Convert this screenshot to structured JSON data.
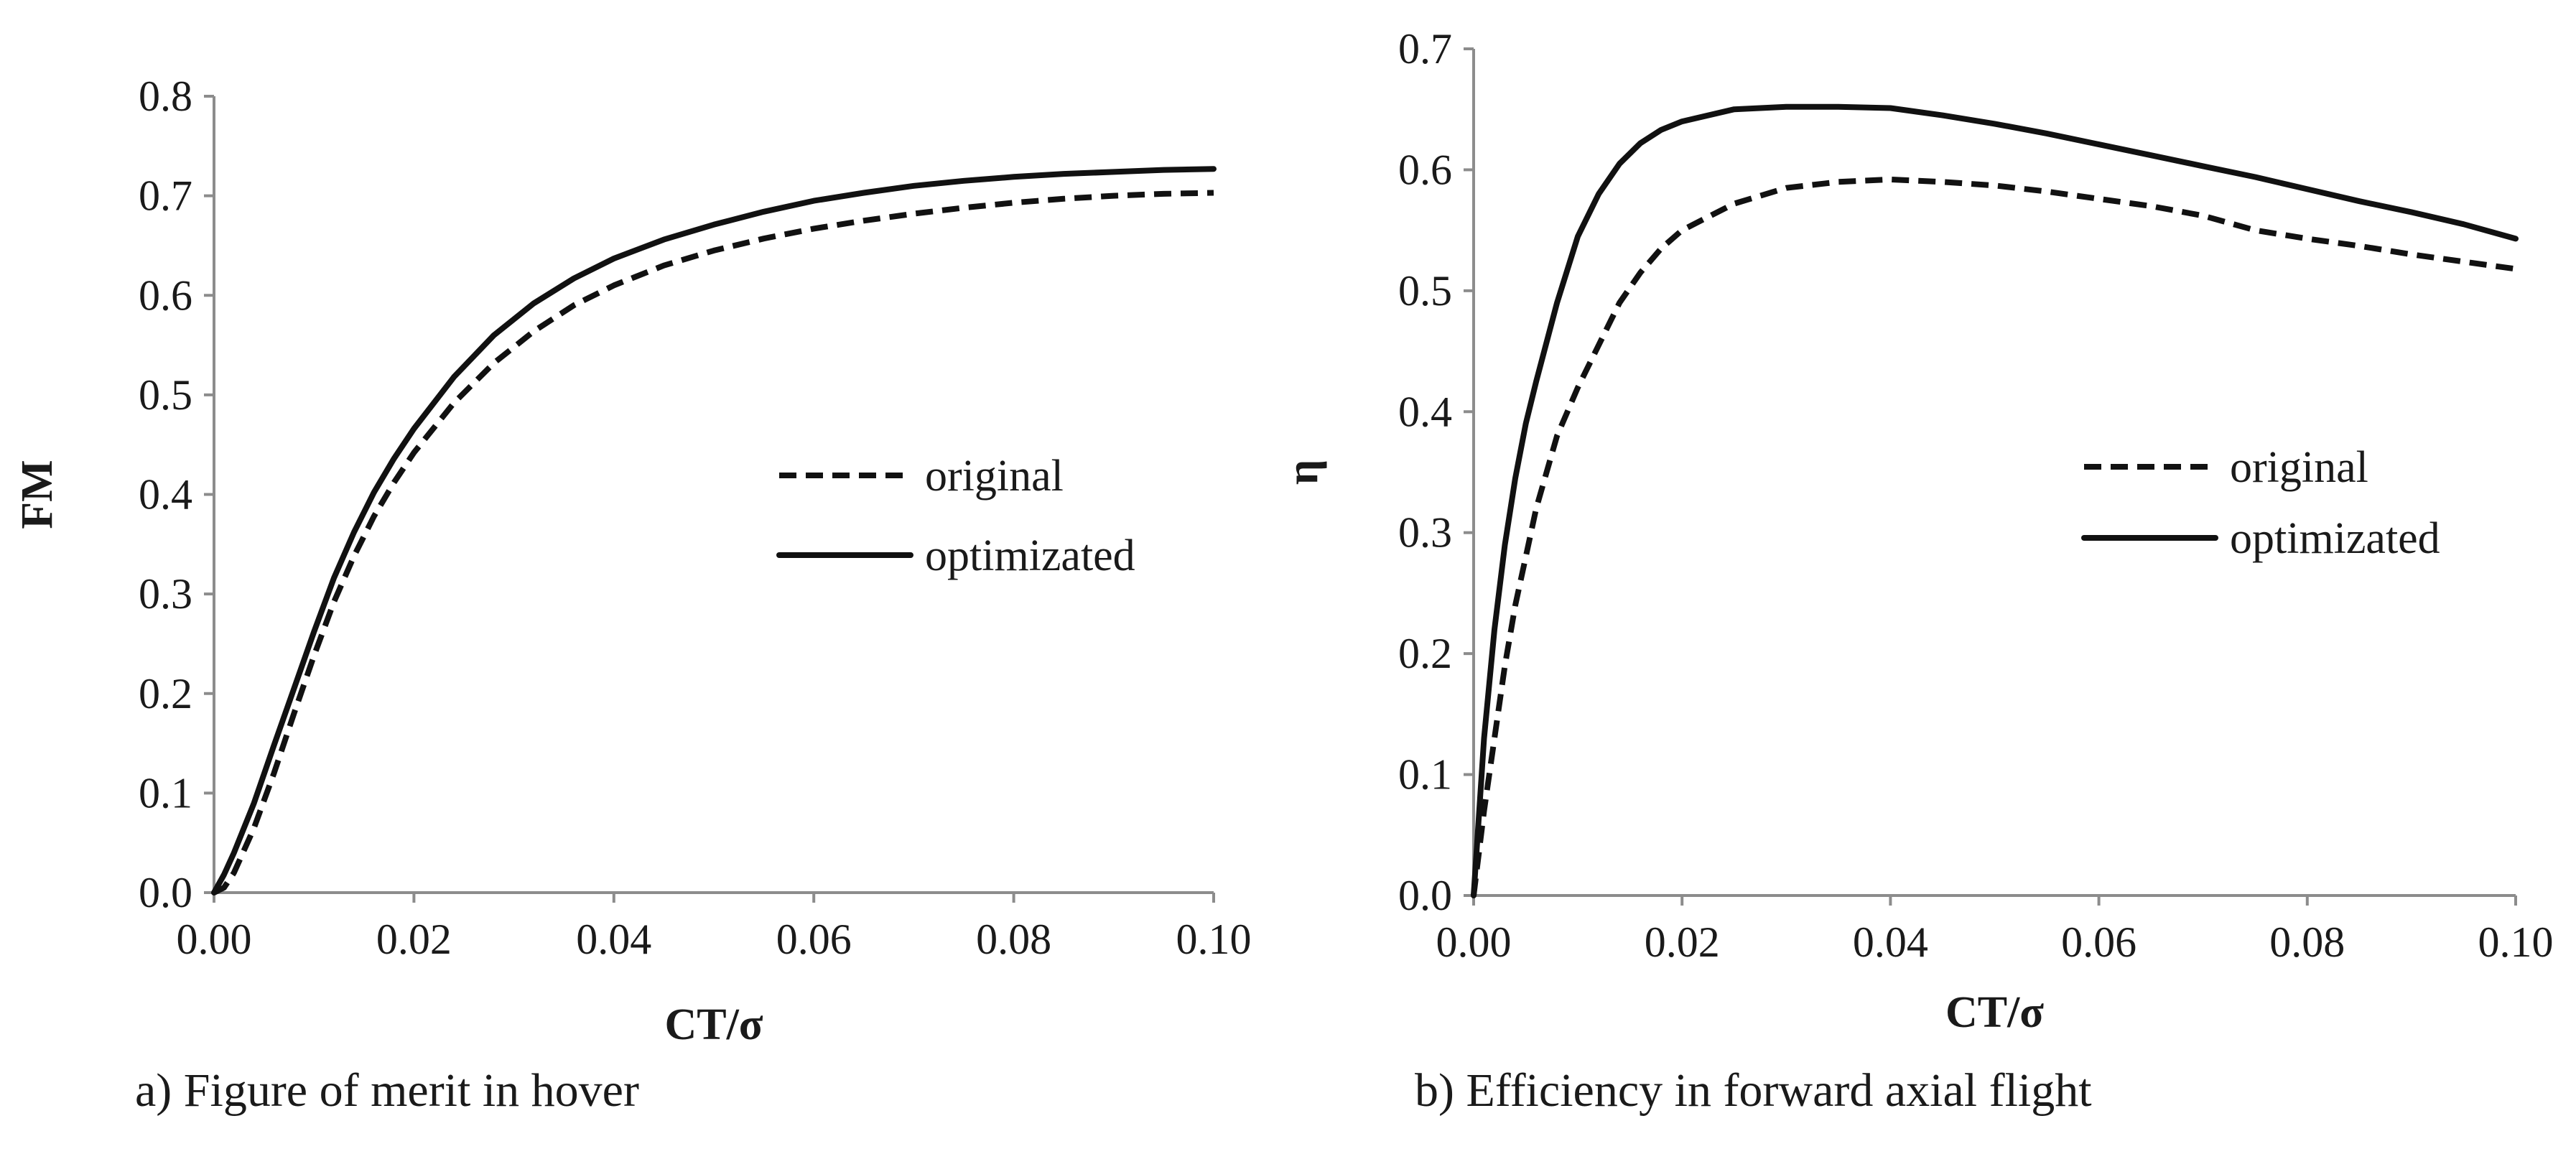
{
  "chart_data": [
    {
      "type": "line",
      "id": "a",
      "caption": "a) Figure of merit in hover",
      "xlabel": "CT/σ",
      "ylabel": "FM",
      "xlim": [
        0,
        0.1
      ],
      "ylim": [
        0,
        0.8
      ],
      "grid": false,
      "legend_position": "middle-right",
      "x_ticks": [
        "0.00",
        "0.02",
        "0.04",
        "0.06",
        "0.08",
        "0.10"
      ],
      "y_ticks": [
        "0.0",
        "0.1",
        "0.2",
        "0.3",
        "0.4",
        "0.5",
        "0.6",
        "0.7",
        "0.8"
      ],
      "series": [
        {
          "name": "original",
          "style": "dashed",
          "x": [
            0,
            0.001,
            0.002,
            0.004,
            0.006,
            0.008,
            0.01,
            0.012,
            0.014,
            0.016,
            0.018,
            0.02,
            0.024,
            0.028,
            0.032,
            0.036,
            0.04,
            0.045,
            0.05,
            0.055,
            0.06,
            0.065,
            0.07,
            0.075,
            0.08,
            0.085,
            0.09,
            0.095,
            0.1
          ],
          "y": [
            0,
            0.005,
            0.02,
            0.065,
            0.12,
            0.18,
            0.238,
            0.292,
            0.338,
            0.378,
            0.412,
            0.442,
            0.492,
            0.532,
            0.564,
            0.59,
            0.61,
            0.63,
            0.645,
            0.657,
            0.667,
            0.675,
            0.682,
            0.688,
            0.693,
            0.697,
            0.7,
            0.702,
            0.703
          ]
        },
        {
          "name": "optimizated",
          "style": "solid",
          "x": [
            0,
            0.001,
            0.002,
            0.004,
            0.006,
            0.008,
            0.01,
            0.012,
            0.014,
            0.016,
            0.018,
            0.02,
            0.024,
            0.028,
            0.032,
            0.036,
            0.04,
            0.045,
            0.05,
            0.055,
            0.06,
            0.065,
            0.07,
            0.075,
            0.08,
            0.085,
            0.09,
            0.095,
            0.1
          ],
          "y": [
            0,
            0.018,
            0.04,
            0.09,
            0.148,
            0.205,
            0.262,
            0.316,
            0.362,
            0.402,
            0.436,
            0.466,
            0.518,
            0.56,
            0.592,
            0.617,
            0.637,
            0.656,
            0.671,
            0.684,
            0.695,
            0.703,
            0.71,
            0.715,
            0.719,
            0.722,
            0.724,
            0.726,
            0.727
          ]
        }
      ]
    },
    {
      "type": "line",
      "id": "b",
      "caption": "b) Efficiency in forward axial flight",
      "xlabel": "CT/σ",
      "ylabel": "η",
      "xlim": [
        0,
        0.1
      ],
      "ylim": [
        0,
        0.7
      ],
      "grid": false,
      "legend_position": "middle-right",
      "x_ticks": [
        "0.00",
        "0.02",
        "0.04",
        "0.06",
        "0.08",
        "0.10"
      ],
      "y_ticks": [
        "0.0",
        "0.1",
        "0.2",
        "0.3",
        "0.4",
        "0.5",
        "0.6",
        "0.7"
      ],
      "series": [
        {
          "name": "original",
          "style": "dashed",
          "x": [
            0,
            0.001,
            0.002,
            0.003,
            0.004,
            0.005,
            0.006,
            0.008,
            0.01,
            0.012,
            0.014,
            0.016,
            0.018,
            0.02,
            0.025,
            0.03,
            0.035,
            0.04,
            0.045,
            0.05,
            0.055,
            0.06,
            0.065,
            0.07,
            0.075,
            0.08,
            0.085,
            0.09,
            0.095,
            0.1
          ],
          "y": [
            0,
            0.07,
            0.13,
            0.19,
            0.24,
            0.28,
            0.32,
            0.38,
            0.42,
            0.455,
            0.49,
            0.515,
            0.535,
            0.55,
            0.572,
            0.585,
            0.59,
            0.592,
            0.59,
            0.587,
            0.582,
            0.576,
            0.57,
            0.562,
            0.55,
            0.543,
            0.537,
            0.53,
            0.524,
            0.518
          ]
        },
        {
          "name": "optimizated",
          "style": "solid",
          "x": [
            0,
            0.001,
            0.002,
            0.003,
            0.004,
            0.005,
            0.006,
            0.008,
            0.01,
            0.012,
            0.014,
            0.016,
            0.018,
            0.02,
            0.025,
            0.03,
            0.035,
            0.04,
            0.045,
            0.05,
            0.055,
            0.06,
            0.065,
            0.07,
            0.075,
            0.08,
            0.085,
            0.09,
            0.095,
            0.1
          ],
          "y": [
            0,
            0.13,
            0.22,
            0.29,
            0.345,
            0.39,
            0.425,
            0.49,
            0.545,
            0.58,
            0.605,
            0.622,
            0.633,
            0.64,
            0.65,
            0.652,
            0.652,
            0.651,
            0.645,
            0.638,
            0.63,
            0.621,
            0.612,
            0.603,
            0.594,
            0.584,
            0.574,
            0.565,
            0.555,
            0.543
          ]
        }
      ]
    }
  ]
}
